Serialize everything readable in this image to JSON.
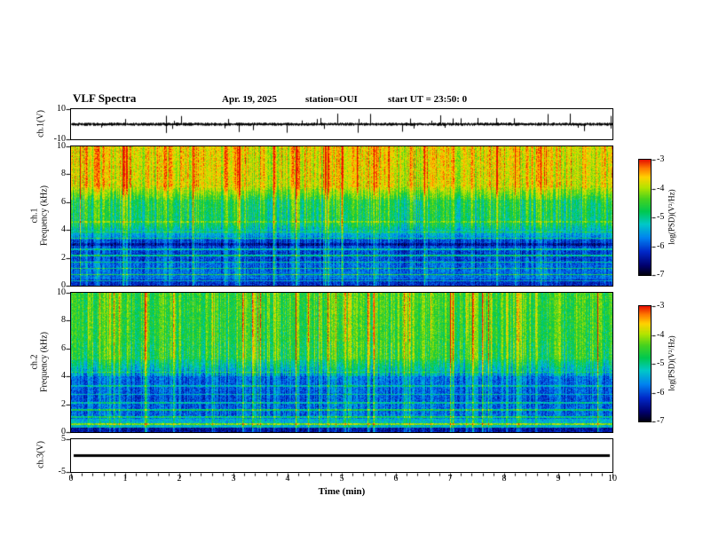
{
  "title": "VLF Spectra",
  "header": {
    "date": "Apr. 19, 2025",
    "station": "station=OUI",
    "start_ut": "start UT =  23:50: 0"
  },
  "x_axis": {
    "label": "Time (min)",
    "min": 0,
    "max": 10,
    "ticks": [
      "0",
      "1",
      "2",
      "3",
      "4",
      "5",
      "6",
      "7",
      "8",
      "9",
      "10"
    ]
  },
  "panels": {
    "ch1_wave": {
      "ylabel": "ch.1(V)",
      "ymin": -10,
      "ymax": 10,
      "yticks": [
        "10",
        "-10"
      ]
    },
    "ch1_spec": {
      "ylabel_line1": "ch.1",
      "ylabel_line2": "Frequency (kHz)",
      "ymin": 0,
      "ymax": 10,
      "yticks": [
        "10",
        "8",
        "6",
        "4",
        "2",
        "0"
      ]
    },
    "ch2_spec": {
      "ylabel_line1": "ch.2",
      "ylabel_line2": "Frequency (kHz)",
      "ymin": 0,
      "ymax": 10,
      "yticks": [
        "10",
        "8",
        "6",
        "4",
        "2",
        "0"
      ]
    },
    "ch3": {
      "ylabel": "ch.3(V)",
      "ymin": -5,
      "ymax": 5,
      "yticks": [
        "5",
        "-5"
      ]
    }
  },
  "colorbar": {
    "label": "log(PSD)(V²/Hz)",
    "zmin": -7,
    "zmax": -3,
    "ticks": [
      "-3",
      "-4",
      "-5",
      "-6",
      "-7"
    ],
    "stops": [
      [
        0,
        "#000014"
      ],
      [
        0.08,
        "#00006e"
      ],
      [
        0.2,
        "#0028c8"
      ],
      [
        0.32,
        "#0082f0"
      ],
      [
        0.44,
        "#00c8c8"
      ],
      [
        0.55,
        "#00c850"
      ],
      [
        0.66,
        "#46d21e"
      ],
      [
        0.76,
        "#b4e400"
      ],
      [
        0.85,
        "#ffd200"
      ],
      [
        0.93,
        "#ff7800"
      ],
      [
        1,
        "#e61400"
      ]
    ]
  },
  "chart_data": [
    {
      "type": "line",
      "panel": "ch1_waveform",
      "series_name": "ch.1 raw voltage",
      "xlim": [
        0,
        10
      ],
      "ylim": [
        -10,
        10
      ],
      "appearance": "dense black broadband noise centred on 0 V with frequent impulsive spikes reaching roughly ±3 to ±9 V throughout the 10 min record",
      "noise_amp": 0.8,
      "spike_prob": 0.03,
      "spike_amp": 5,
      "seed": 7
    },
    {
      "type": "heatmap",
      "panel": "ch1_spectrogram",
      "xlim": [
        0,
        10
      ],
      "ylim": [
        0,
        10
      ],
      "zlim": [
        -7,
        -3
      ],
      "zlabel": "log(PSD)(V²/Hz)",
      "appearance": "strong yellow-red band above ~7 kHz with dense red vertical sferic streaks; green 4-6.5 kHz with blue dips; blue below 4 kHz crossed by bright horizontal lines and green vertical streaks; dark band near 3 kHz",
      "bands": [
        {
          "f": [
            0,
            0.45
          ],
          "t": [
            0.2,
            0.2
          ]
        },
        {
          "f": [
            0.45,
            1.8
          ],
          "t": [
            0.3,
            0.28
          ]
        },
        {
          "f": [
            1.8,
            3.3
          ],
          "t": [
            0.24,
            0.24
          ]
        },
        {
          "f": [
            3.3,
            4.3
          ],
          "t": [
            0.3,
            0.52
          ]
        },
        {
          "f": [
            4.3,
            6.2
          ],
          "t": [
            0.53,
            0.58
          ]
        },
        {
          "f": [
            6.2,
            7.1
          ],
          "t": [
            0.62,
            0.78
          ]
        },
        {
          "f": [
            7.1,
            10
          ],
          "t": [
            0.8,
            0.82
          ]
        }
      ],
      "hlines": [
        {
          "f": 0.35,
          "w": 0.06,
          "s": 0.22
        },
        {
          "f": 0.8,
          "w": 0.05,
          "s": 0.3
        },
        {
          "f": 1.25,
          "w": 0.05,
          "s": 0.26
        },
        {
          "f": 1.7,
          "w": 0.05,
          "s": 0.22
        },
        {
          "f": 2.15,
          "w": 0.05,
          "s": 0.26
        },
        {
          "f": 2.6,
          "w": 0.05,
          "s": 0.2
        },
        {
          "f": 2.95,
          "w": 0.09,
          "s": -0.1
        },
        {
          "f": 3.4,
          "w": 0.05,
          "s": 0.2
        },
        {
          "f": 3.85,
          "w": 0.05,
          "s": 0.16
        },
        {
          "f": 4.6,
          "w": 0.05,
          "s": 0.12
        }
      ],
      "streak_prob": 0.055,
      "streak_gain": 0.55,
      "noise": 0.16,
      "seed": 42
    },
    {
      "type": "heatmap",
      "panel": "ch2_spectrogram",
      "xlim": [
        0,
        10
      ],
      "ylim": [
        0,
        10
      ],
      "zlim": [
        -7,
        -3
      ],
      "zlabel": "log(PSD)(V²/Hz)",
      "appearance": "green band above ~5 kHz with yellow vertical streaks and rare red specks; blue 2-4 kHz pierced by green vertical streaks; bright horizontal lines 0.5-2 kHz; dark band at the very bottom",
      "bands": [
        {
          "f": [
            0,
            0.35
          ],
          "t": [
            0.14,
            0.14
          ]
        },
        {
          "f": [
            0.35,
            0.95
          ],
          "t": [
            0.42,
            0.4
          ]
        },
        {
          "f": [
            0.95,
            2.1
          ],
          "t": [
            0.3,
            0.28
          ]
        },
        {
          "f": [
            2.1,
            4.0
          ],
          "t": [
            0.26,
            0.3
          ]
        },
        {
          "f": [
            4.0,
            5.2
          ],
          "t": [
            0.38,
            0.56
          ]
        },
        {
          "f": [
            5.2,
            10
          ],
          "t": [
            0.6,
            0.64
          ]
        }
      ],
      "hlines": [
        {
          "f": 0.55,
          "w": 0.07,
          "s": 0.3
        },
        {
          "f": 1.1,
          "w": 0.05,
          "s": 0.24
        },
        {
          "f": 1.6,
          "w": 0.05,
          "s": 0.26
        },
        {
          "f": 2.1,
          "w": 0.05,
          "s": 0.2
        },
        {
          "f": 2.7,
          "w": 0.05,
          "s": 0.18
        },
        {
          "f": 3.3,
          "w": 0.05,
          "s": 0.16
        },
        {
          "f": 4.3,
          "w": 0.05,
          "s": 0.14
        }
      ],
      "streak_prob": 0.07,
      "streak_gain": 0.6,
      "noise": 0.17,
      "seed": 1337
    },
    {
      "type": "line",
      "panel": "ch3_line",
      "series_name": "ch.3 raw voltage",
      "xlim": [
        0,
        10
      ],
      "ylim": [
        -5,
        5
      ],
      "appearance": "constant flat thick black line at 0 V for the whole record",
      "value": 0
    }
  ]
}
